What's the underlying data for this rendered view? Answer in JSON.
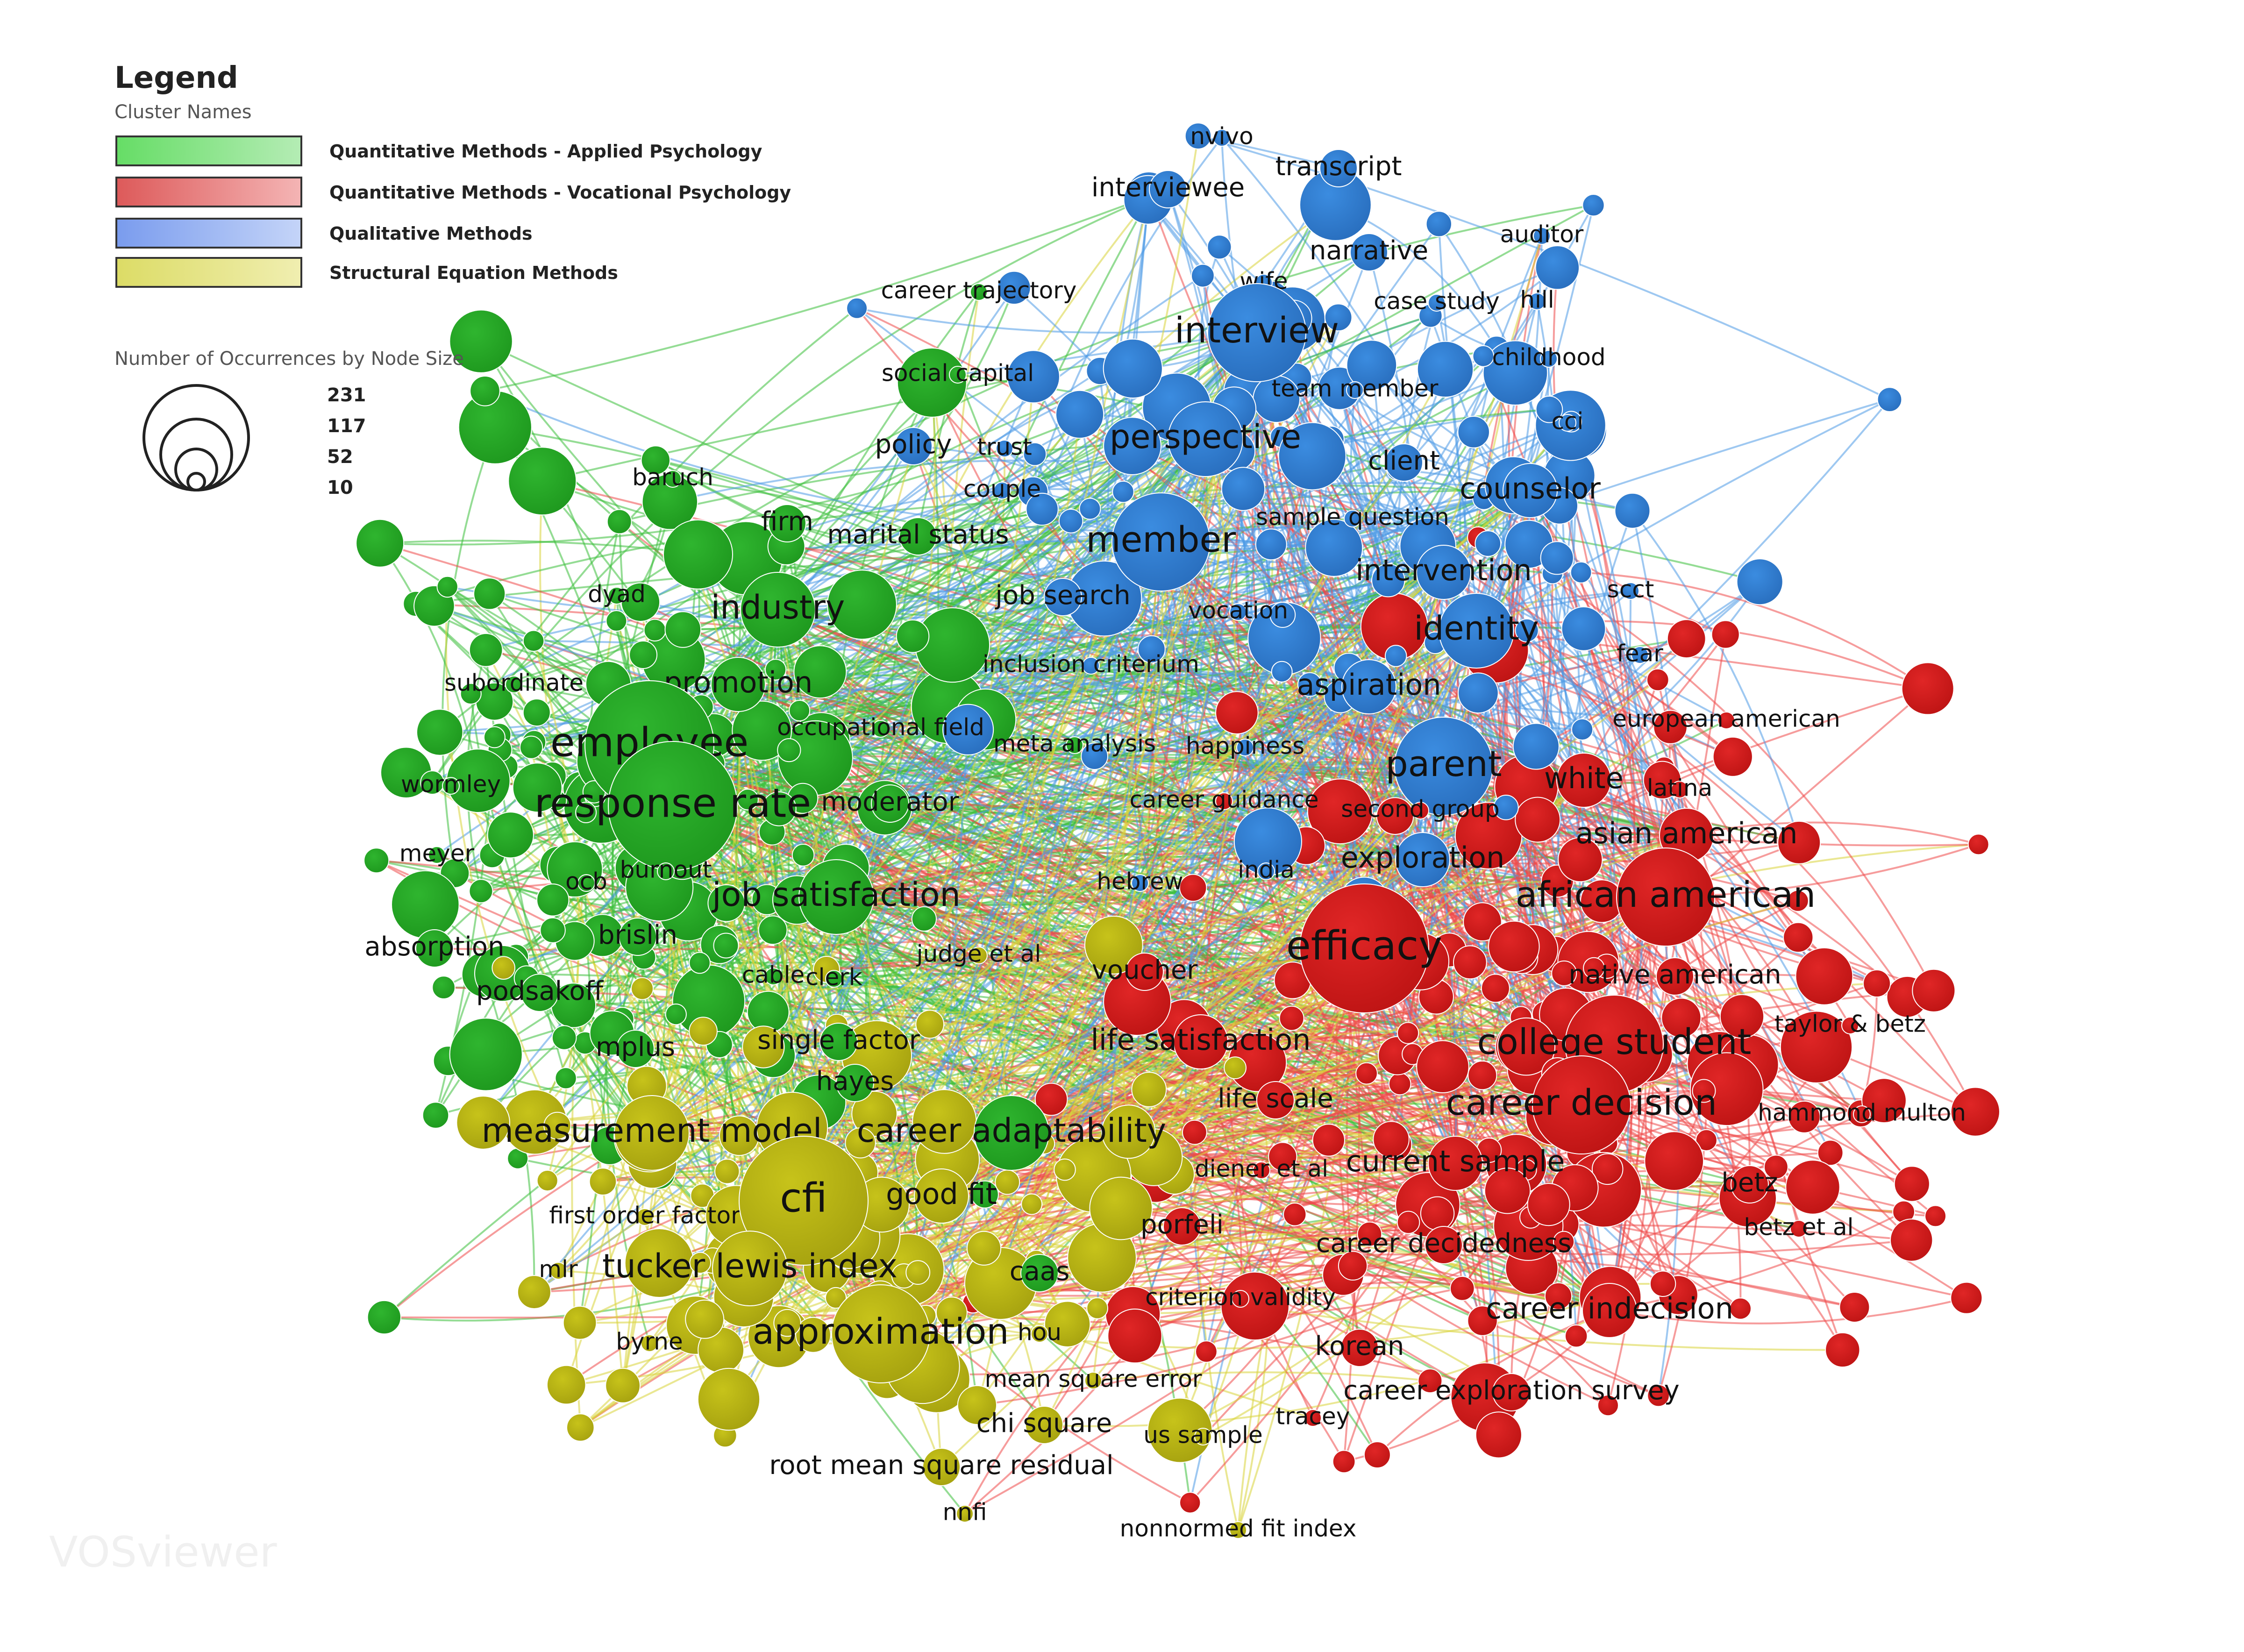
{
  "legend": {
    "title": "Legend",
    "subtitle": "Cluster Names",
    "clusters": [
      {
        "name": "Quantitative Methods - Applied Psychology",
        "color": "#2eb82e",
        "light": "#b4ecb4"
      },
      {
        "name": "Quantitative Methods - Vocational Psychology",
        "color": "#e02424",
        "light": "#f4b4b4"
      },
      {
        "name": "Qualitative Methods",
        "color": "#3a8ee0",
        "light": "#c4d4f8"
      },
      {
        "name": "Structural Equation Methods",
        "color": "#c8c418",
        "light": "#f0eeb0"
      }
    ],
    "size_title": "Number of Occurrences by Node Size",
    "size_values": [
      "231",
      "117",
      "52",
      "10"
    ]
  },
  "watermark": "VOSviewer",
  "nodes": [
    {
      "label": "nvivo",
      "c": 2,
      "s": 1
    },
    {
      "label": "transcript",
      "c": 2,
      "s": 2
    },
    {
      "label": "interviewee",
      "c": 2,
      "s": 2
    },
    {
      "label": "auditor",
      "c": 2,
      "s": 1
    },
    {
      "label": "narrative",
      "c": 2,
      "s": 2
    },
    {
      "label": "wife",
      "c": 2,
      "s": 1
    },
    {
      "label": "career trajectory",
      "c": 0,
      "s": 1
    },
    {
      "label": "case study",
      "c": 2,
      "s": 1
    },
    {
      "label": "hill",
      "c": 2,
      "s": 1
    },
    {
      "label": "interview",
      "c": 2,
      "s": 5
    },
    {
      "label": "childhood",
      "c": 2,
      "s": 1
    },
    {
      "label": "social capital",
      "c": 0,
      "s": 1
    },
    {
      "label": "team member",
      "c": 2,
      "s": 1
    },
    {
      "label": "cci",
      "c": 2,
      "s": 1
    },
    {
      "label": "policy",
      "c": 2,
      "s": 2
    },
    {
      "label": "trust",
      "c": 2,
      "s": 1
    },
    {
      "label": "perspective",
      "c": 2,
      "s": 4
    },
    {
      "label": "client",
      "c": 2,
      "s": 2
    },
    {
      "label": "baruch",
      "c": 0,
      "s": 1
    },
    {
      "label": "couple",
      "c": 2,
      "s": 1
    },
    {
      "label": "counselor",
      "c": 2,
      "s": 3
    },
    {
      "label": "sample question",
      "c": 2,
      "s": 1
    },
    {
      "label": "firm",
      "c": 0,
      "s": 2
    },
    {
      "label": "marital status",
      "c": 0,
      "s": 2
    },
    {
      "label": "member",
      "c": 2,
      "s": 5
    },
    {
      "label": "dyad",
      "c": 0,
      "s": 1
    },
    {
      "label": "industry",
      "c": 0,
      "s": 4
    },
    {
      "label": "job search",
      "c": 2,
      "s": 2
    },
    {
      "label": "intervention",
      "c": 2,
      "s": 3
    },
    {
      "label": "scct",
      "c": 2,
      "s": 1
    },
    {
      "label": "vocation",
      "c": 2,
      "s": 1
    },
    {
      "label": "identity",
      "c": 2,
      "s": 4
    },
    {
      "label": "fear",
      "c": 2,
      "s": 1
    },
    {
      "label": "inclusion criterium",
      "c": 2,
      "s": 1
    },
    {
      "label": "subordinate",
      "c": 0,
      "s": 1
    },
    {
      "label": "promotion",
      "c": 0,
      "s": 3
    },
    {
      "label": "aspiration",
      "c": 2,
      "s": 3
    },
    {
      "label": "european american",
      "c": 1,
      "s": 1
    },
    {
      "label": "occupational field",
      "c": 0,
      "s": 1
    },
    {
      "label": "employee",
      "c": 0,
      "s": 6
    },
    {
      "label": "meta analysis",
      "c": 0,
      "s": 1
    },
    {
      "label": "happiness",
      "c": 2,
      "s": 1
    },
    {
      "label": "parent",
      "c": 2,
      "s": 5
    },
    {
      "label": "wormley",
      "c": 0,
      "s": 1
    },
    {
      "label": "white",
      "c": 1,
      "s": 3
    },
    {
      "label": "latina",
      "c": 1,
      "s": 1
    },
    {
      "label": "response rate",
      "c": 0,
      "s": 6
    },
    {
      "label": "moderator",
      "c": 0,
      "s": 2
    },
    {
      "label": "career guidance",
      "c": 1,
      "s": 1
    },
    {
      "label": "second group",
      "c": 1,
      "s": 1
    },
    {
      "label": "asian american",
      "c": 1,
      "s": 3
    },
    {
      "label": "meyer",
      "c": 0,
      "s": 1
    },
    {
      "label": "burnout",
      "c": 0,
      "s": 1
    },
    {
      "label": "exploration",
      "c": 2,
      "s": 3
    },
    {
      "label": "ocb",
      "c": 0,
      "s": 1
    },
    {
      "label": "hebrew",
      "c": 2,
      "s": 1
    },
    {
      "label": "india",
      "c": 2,
      "s": 1
    },
    {
      "label": "job satisfaction",
      "c": 0,
      "s": 4
    },
    {
      "label": "african american",
      "c": 1,
      "s": 5
    },
    {
      "label": "brislin",
      "c": 0,
      "s": 2
    },
    {
      "label": "absorption",
      "c": 0,
      "s": 2
    },
    {
      "label": "efficacy",
      "c": 1,
      "s": 6
    },
    {
      "label": "judge et al",
      "c": 3,
      "s": 1
    },
    {
      "label": "cable",
      "c": 0,
      "s": 1
    },
    {
      "label": "clerk",
      "c": 0,
      "s": 1
    },
    {
      "label": "voucher",
      "c": 1,
      "s": 2
    },
    {
      "label": "native american",
      "c": 1,
      "s": 2
    },
    {
      "label": "podsakoff",
      "c": 0,
      "s": 2
    },
    {
      "label": "taylor & betz",
      "c": 1,
      "s": 1
    },
    {
      "label": "mplus",
      "c": 0,
      "s": 2
    },
    {
      "label": "single factor",
      "c": 0,
      "s": 2
    },
    {
      "label": "life satisfaction",
      "c": 1,
      "s": 3
    },
    {
      "label": "college student",
      "c": 1,
      "s": 5
    },
    {
      "label": "hayes",
      "c": 0,
      "s": 2
    },
    {
      "label": "life scale",
      "c": 1,
      "s": 2
    },
    {
      "label": "career decision",
      "c": 1,
      "s": 5
    },
    {
      "label": "hammond multon",
      "c": 1,
      "s": 1
    },
    {
      "label": "measurement model",
      "c": 3,
      "s": 4
    },
    {
      "label": "career adaptability",
      "c": 0,
      "s": 4
    },
    {
      "label": "diener et al",
      "c": 1,
      "s": 1
    },
    {
      "label": "current sample",
      "c": 1,
      "s": 3
    },
    {
      "label": "first order factor",
      "c": 3,
      "s": 1
    },
    {
      "label": "cfi",
      "c": 3,
      "s": 6
    },
    {
      "label": "good fit",
      "c": 3,
      "s": 3
    },
    {
      "label": "betz",
      "c": 1,
      "s": 2
    },
    {
      "label": "porfeli",
      "c": 1,
      "s": 2
    },
    {
      "label": "betz et al",
      "c": 1,
      "s": 1
    },
    {
      "label": "career decidedness",
      "c": 1,
      "s": 2
    },
    {
      "label": "mlr",
      "c": 3,
      "s": 1
    },
    {
      "label": "tucker lewis index",
      "c": 3,
      "s": 4
    },
    {
      "label": "caas",
      "c": 0,
      "s": 2
    },
    {
      "label": "criterion validity",
      "c": 1,
      "s": 1
    },
    {
      "label": "career indecision",
      "c": 1,
      "s": 3
    },
    {
      "label": "approximation",
      "c": 3,
      "s": 5
    },
    {
      "label": "hou",
      "c": 3,
      "s": 1
    },
    {
      "label": "byrne",
      "c": 3,
      "s": 1
    },
    {
      "label": "korean",
      "c": 1,
      "s": 2
    },
    {
      "label": "mean square error",
      "c": 3,
      "s": 1
    },
    {
      "label": "career exploration survey",
      "c": 1,
      "s": 2
    },
    {
      "label": "tracey",
      "c": 1,
      "s": 1
    },
    {
      "label": "chi square",
      "c": 3,
      "s": 2
    },
    {
      "label": "us sample",
      "c": 3,
      "s": 1
    },
    {
      "label": "root mean square residual",
      "c": 3,
      "s": 2
    },
    {
      "label": "nnfi",
      "c": 3,
      "s": 1
    },
    {
      "label": "nonnormed fit index",
      "c": 3,
      "s": 1
    }
  ]
}
